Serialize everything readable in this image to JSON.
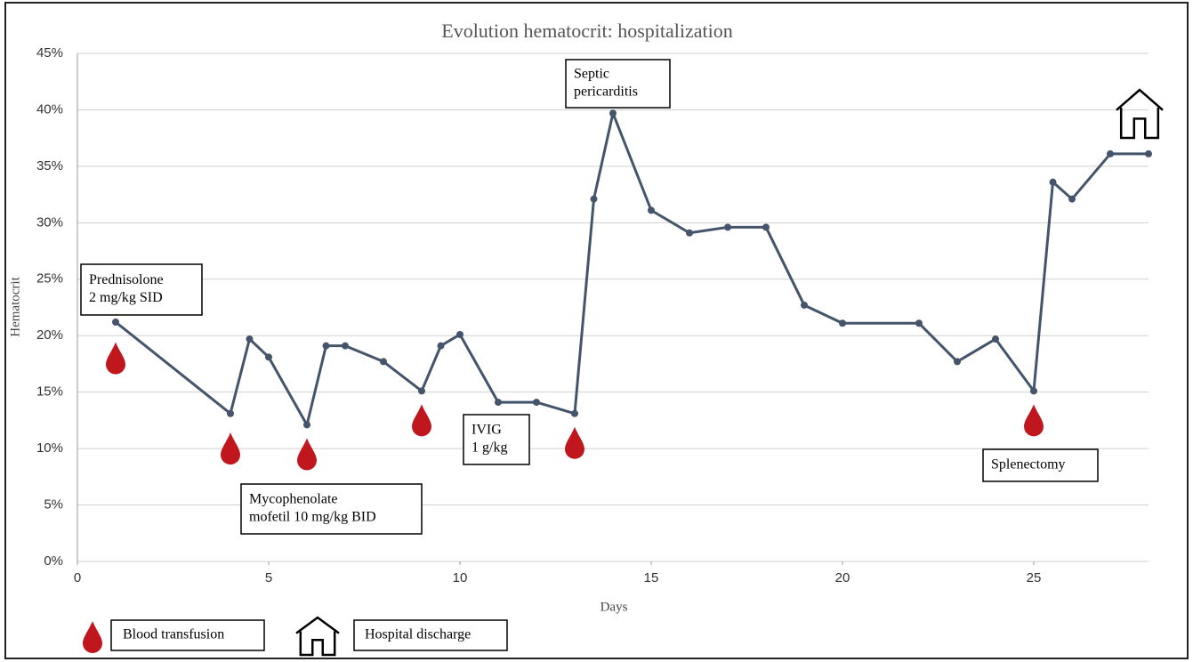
{
  "chart_data": {
    "type": "line",
    "title": "Evolution hematocrit: hospitalization",
    "x_label": "Days",
    "y_label": "Hematocrit",
    "xlim": [
      0,
      28
    ],
    "xticks": [
      0,
      5,
      10,
      15,
      20,
      25
    ],
    "ylim": [
      0,
      45
    ],
    "yticks": [
      {
        "value": 0,
        "label": "0%"
      },
      {
        "value": 5,
        "label": "5%"
      },
      {
        "value": 10,
        "label": "10%"
      },
      {
        "value": 15,
        "label": "15%"
      },
      {
        "value": 20,
        "label": "20%"
      },
      {
        "value": 25,
        "label": "25%"
      },
      {
        "value": 30,
        "label": "30%"
      },
      {
        "value": 35,
        "label": "35%"
      },
      {
        "value": 40,
        "label": "40%"
      },
      {
        "value": 45,
        "label": "45%"
      }
    ],
    "grid": true,
    "series": [
      {
        "name": "Hematocrit",
        "color": "#44546a",
        "x": [
          1,
          4,
          4.5,
          5,
          6,
          6.5,
          7,
          8,
          9,
          9.5,
          10,
          11,
          12,
          13,
          13.5,
          14,
          15,
          16,
          17,
          18,
          19,
          20,
          22,
          23,
          24,
          25,
          25.5,
          26,
          27,
          28
        ],
        "values": [
          21.2,
          13.1,
          19.7,
          18.1,
          12.1,
          19.1,
          19.1,
          17.7,
          15.1,
          19.1,
          20.1,
          14.1,
          14.1,
          13.1,
          32.1,
          39.7,
          31.1,
          29.1,
          29.6,
          29.6,
          22.7,
          21.1,
          21.1,
          17.7,
          19.7,
          15.1,
          33.6,
          32.1,
          36.1,
          36.1
        ]
      }
    ],
    "transfusions": {
      "color": "#c0171f",
      "x": [
        1,
        4,
        6,
        9,
        13,
        25
      ],
      "values": [
        18,
        10,
        9.5,
        12.5,
        10.5,
        12.5
      ]
    },
    "annotations": [
      {
        "lines": [
          "Prednisolone",
          "2 mg/kg SID"
        ]
      },
      {
        "lines": [
          "Mycophenolate",
          "mofetil 10 mg/kg BID"
        ]
      },
      {
        "lines": [
          "IVIG",
          "1 g/kg"
        ]
      },
      {
        "lines": [
          "Septic",
          "pericarditis"
        ]
      },
      {
        "lines": [
          "Splenectomy"
        ]
      }
    ],
    "legend": [
      "Blood transfusion",
      "Hospital discharge"
    ]
  }
}
